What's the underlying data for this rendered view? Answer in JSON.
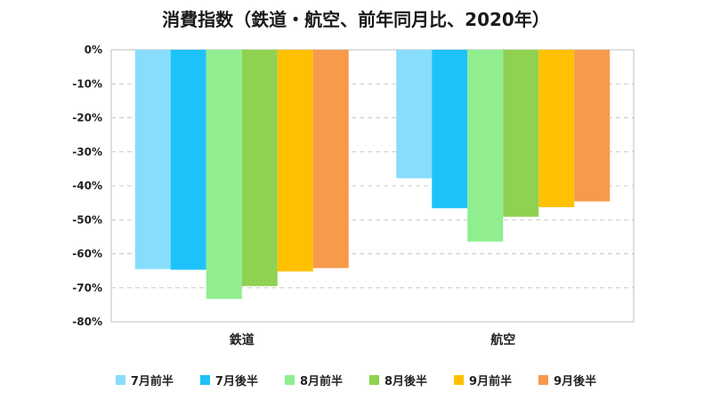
{
  "chart_data": {
    "type": "bar",
    "title": "消費指数（鉄道・航空、前年同月比、2020年）",
    "categories": [
      "鉄道",
      "航空"
    ],
    "series": [
      {
        "name": "7月前半",
        "color": "#87DDFB",
        "values": [
          -64.5,
          -37.8
        ]
      },
      {
        "name": "7月後半",
        "color": "#1EC2FA",
        "values": [
          -64.7,
          -46.6
        ]
      },
      {
        "name": "8月前半",
        "color": "#90EE90",
        "values": [
          -73.3,
          -56.4
        ]
      },
      {
        "name": "8月後半",
        "color": "#8FD150",
        "values": [
          -69.5,
          -49.1
        ]
      },
      {
        "name": "9月前半",
        "color": "#FFC000",
        "values": [
          -65.2,
          -46.3
        ]
      },
      {
        "name": "9月後半",
        "color": "#F79A4B",
        "values": [
          -64.2,
          -44.6
        ]
      }
    ],
    "yticks": [
      "0%",
      "-10%",
      "-20%",
      "-30%",
      "-40%",
      "-50%",
      "-60%",
      "-70%",
      "-80%"
    ],
    "ylim": [
      -80,
      0
    ],
    "grid": true,
    "legend": "bottom"
  }
}
